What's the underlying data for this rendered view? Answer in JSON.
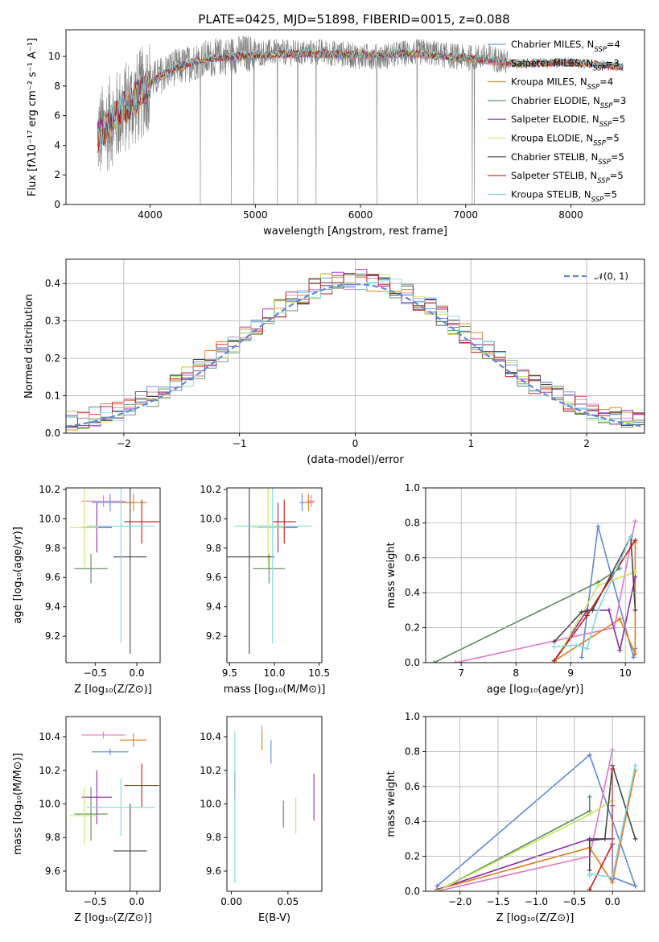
{
  "figure": {
    "title": "PLATE=0425, MJD=51898, FIBERID=0015, z=0.088"
  },
  "colors": {
    "chabrier_miles": "#5e87d8",
    "salpeter_miles": "#e377c2",
    "kroupa_miles": "#e07b1a",
    "chabrier_elodie": "#5a8a5e",
    "salpeter_elodie": "#8a2aa8",
    "kroupa_elodie": "#c8e85a",
    "chabrier_stelib": "#444444",
    "salpeter_stelib": "#c81818",
    "kroupa_stelib": "#7fd8e0",
    "data": "#808080",
    "normal": "#5e87d8",
    "grid": "#b0b0b0"
  },
  "chart_data": [
    {
      "id": "spectrum",
      "type": "line",
      "title": "PLATE=0425, MJD=51898, FIBERID=0015, z=0.088",
      "xlabel": "wavelength [Angstrom, rest frame]",
      "ylabel": "Flux [fλ10⁻¹⁷ erg cm⁻² s⁻¹ A⁻¹]",
      "xlim": [
        3200,
        8700
      ],
      "ylim": [
        0,
        11.8
      ],
      "xticks": [
        4000,
        5000,
        6000,
        7000,
        8000
      ],
      "yticks": [
        0,
        2,
        4,
        6,
        8,
        10
      ],
      "grid": false,
      "legend_position": "top-right",
      "data_envelope": {
        "x": [
          3500,
          3550,
          3600,
          3650,
          3700,
          3750,
          3800,
          3850,
          3900,
          3950,
          4000,
          4100,
          4200,
          4300,
          4400,
          4500,
          4600,
          4700,
          4800,
          4900,
          5000,
          5200,
          5400,
          5600,
          5800,
          6000,
          6200,
          6400,
          6600,
          6800,
          7000,
          7200,
          7400
        ],
        "y": [
          4.6,
          5.0,
          5.4,
          5.8,
          6.0,
          6.4,
          6.8,
          7.0,
          7.3,
          7.8,
          8.3,
          8.7,
          9.2,
          9.3,
          9.6,
          9.8,
          9.9,
          10.0,
          10.1,
          10.2,
          10.2,
          10.3,
          10.2,
          10.3,
          10.2,
          10.0,
          10.0,
          10.2,
          10.3,
          10.1,
          9.9,
          10.0,
          9.6
        ]
      },
      "model_envelope": {
        "x": [
          3500,
          3600,
          3700,
          3800,
          3900,
          4000,
          4200,
          4400,
          4600,
          4800,
          5000,
          5500,
          6000,
          6500,
          7000,
          7500,
          8000,
          8500
        ],
        "y": [
          4.5,
          5.4,
          6.2,
          6.8,
          7.4,
          8.2,
          9.1,
          9.6,
          9.9,
          10.0,
          10.1,
          10.2,
          10.1,
          10.2,
          9.9,
          9.5,
          9.6,
          9.3
        ]
      },
      "series": [
        {
          "name": "Chabrier MILES, N",
          "sub": "SSP",
          "suffix": "=4"
        },
        {
          "name": "Salpeter MILES, N",
          "sub": "SSP",
          "suffix": "=3"
        },
        {
          "name": "Kroupa MILES, N",
          "sub": "SSP",
          "suffix": "=4"
        },
        {
          "name": "Chabrier ELODIE, N",
          "sub": "SSP",
          "suffix": "=3"
        },
        {
          "name": "Salpeter ELODIE, N",
          "sub": "SSP",
          "suffix": "=5"
        },
        {
          "name": "Kroupa ELODIE, N",
          "sub": "SSP",
          "suffix": "=5"
        },
        {
          "name": "Chabrier STELIB, N",
          "sub": "SSP",
          "suffix": "=5"
        },
        {
          "name": "Salpeter STELIB, N",
          "sub": "SSP",
          "suffix": "=5"
        },
        {
          "name": "Kroupa STELIB, N",
          "sub": "SSP",
          "suffix": "=5"
        }
      ]
    },
    {
      "id": "residuals",
      "type": "line",
      "xlabel": "(data-model)/error",
      "ylabel": "Normed distribution",
      "xlim": [
        -2.5,
        2.5
      ],
      "ylim": [
        0,
        0.465
      ],
      "xticks": [
        -2,
        -1,
        0,
        1,
        2
      ],
      "yticks": [
        0.0,
        0.1,
        0.2,
        0.3,
        0.4
      ],
      "grid": true,
      "legend_position": "top-right",
      "legend_label": "𝒩(0, 1)",
      "normal": {
        "mean": 0,
        "sigma": 1
      },
      "bins": {
        "start": -2.5,
        "width": 0.1,
        "count": 50
      }
    },
    {
      "id": "age_vs_z",
      "type": "scatter",
      "xlabel": "Z [log₁₀(Z/Z⊙)]",
      "ylabel": "age  [log₁₀(age/yr)]",
      "xlim": [
        -0.85,
        0.28
      ],
      "ylim": [
        9.02,
        10.21
      ],
      "xticks": [
        -0.5,
        0.0
      ],
      "yticks": [
        9.2,
        9.4,
        9.6,
        9.8,
        10.0,
        10.2
      ],
      "grid": false
    },
    {
      "id": "age_vs_mass",
      "type": "scatter",
      "xlabel": "mass [log₁₀(M/M⊙)]",
      "ylabel": "",
      "xlim": [
        9.47,
        10.53
      ],
      "ylim": [
        9.02,
        10.21
      ],
      "xticks": [
        9.5,
        10.0,
        10.5
      ],
      "yticks": [
        9.2,
        9.4,
        9.6,
        9.8,
        10.0,
        10.2
      ],
      "grid": false
    },
    {
      "id": "weight_vs_age",
      "type": "line",
      "xlabel": "age  [log₁₀(age/yr)]",
      "ylabel": "mass weight",
      "xlim": [
        6.35,
        10.35
      ],
      "ylim": [
        0,
        1.0
      ],
      "xticks": [
        7,
        8,
        9,
        10
      ],
      "yticks": [
        0.0,
        0.2,
        0.4,
        0.6,
        0.8,
        1.0
      ],
      "grid": true
    },
    {
      "id": "mass_vs_z",
      "type": "scatter",
      "xlabel": "Z [log₁₀(Z/Z⊙)]",
      "ylabel": "mass [log₁₀(M/M⊙)]",
      "xlim": [
        -0.85,
        0.28
      ],
      "ylim": [
        9.48,
        10.52
      ],
      "xticks": [
        -0.5,
        0.0
      ],
      "yticks": [
        9.6,
        9.8,
        10.0,
        10.2,
        10.4
      ],
      "grid": false
    },
    {
      "id": "mass_vs_ebv",
      "type": "scatter",
      "xlabel": "E(B-V)",
      "ylabel": "",
      "xlim": [
        -0.004,
        0.08
      ],
      "ylim": [
        9.48,
        10.52
      ],
      "xticks": [
        0.0,
        0.05
      ],
      "yticks": [
        9.6,
        9.8,
        10.0,
        10.2,
        10.4
      ],
      "grid": false
    },
    {
      "id": "weight_vs_z",
      "type": "line",
      "xlabel": "Z [log₁₀(Z/Z⊙)]",
      "ylabel": "mass weight",
      "xlim": [
        -2.45,
        0.42
      ],
      "ylim": [
        0,
        1.0
      ],
      "xticks": [
        -2.0,
        -1.5,
        -1.0,
        -0.5,
        0.0
      ],
      "yticks": [
        0.0,
        0.2,
        0.4,
        0.6,
        0.8,
        1.0
      ],
      "grid": true
    }
  ],
  "fits": [
    {
      "model": "chabrier_miles",
      "z": -0.32,
      "zerr": 0.22,
      "age": 10.11,
      "ageerr": 0.06,
      "mass": 10.31,
      "masserr": 0.03,
      "masserr_z": 0.02,
      "ebv": 0.035,
      "ebverr": 0.07,
      "comp_age": [
        9.2,
        9.5,
        10.15,
        10.18
      ],
      "comp_z": [
        -2.3,
        -0.3,
        0.3,
        0.0
      ],
      "comp_w": [
        0.03,
        0.78,
        0.03,
        0.08
      ]
    },
    {
      "model": "salpeter_miles",
      "z": -0.4,
      "zerr": 0.26,
      "age": 10.12,
      "ageerr": 0.04,
      "mass": 10.41,
      "masserr": 0.05,
      "masserr_z": 0.02,
      "ebv": 0.027,
      "ebverr": 0.06,
      "comp_age": [
        6.9,
        9.8,
        10.18
      ],
      "comp_z": [
        -2.3,
        -0.3,
        0.0
      ],
      "comp_w": [
        0.0,
        0.2,
        0.81
      ]
    },
    {
      "model": "kroupa_miles",
      "z": -0.04,
      "zerr": 0.16,
      "age": 10.11,
      "ageerr": 0.06,
      "mass": 10.38,
      "masserr": 0.06,
      "masserr_z": 0.04,
      "ebv": 0.027,
      "ebverr": 0.06,
      "comp_age": [
        8.7,
        9.9,
        10.18,
        10.18
      ],
      "comp_z": [
        -2.3,
        -0.3,
        0.0,
        0.3
      ],
      "comp_w": [
        0.01,
        0.25,
        0.05,
        0.69
      ]
    },
    {
      "model": "chabrier_elodie",
      "z": -0.55,
      "zerr": 0.2,
      "age": 9.66,
      "ageerr": 0.1,
      "mass": 9.94,
      "masserr": 0.18,
      "masserr_z": 0.16,
      "ebv": 0.046,
      "ebverr": 0.08,
      "comp_age": [
        6.5,
        9.5,
        9.9
      ],
      "comp_z": [
        -2.3,
        -0.3,
        -0.3
      ],
      "comp_w": [
        0.0,
        0.46,
        0.54
      ]
    },
    {
      "model": "salpeter_elodie",
      "z": -0.48,
      "zerr": 0.18,
      "age": 9.94,
      "ageerr": 0.17,
      "mass": 10.04,
      "masserr": 0.22,
      "masserr_z": 0.16,
      "ebv": 0.073,
      "ebverr": 0.14,
      "comp_age": [
        8.7,
        9.3,
        9.7,
        9.9,
        10.18
      ],
      "comp_z": [
        -2.3,
        -0.3,
        0.0,
        0.0,
        0.0
      ],
      "comp_w": [
        0.01,
        0.3,
        0.3,
        0.07,
        0.49
      ]
    },
    {
      "model": "kroupa_elodie",
      "z": -0.63,
      "zerr": 0.17,
      "age": 9.94,
      "ageerr": 0.27,
      "mass": 9.93,
      "masserr": 0.18,
      "masserr_z": 0.17,
      "ebv": 0.057,
      "ebverr": 0.11,
      "comp_age": [
        8.7,
        9.5,
        10.18
      ],
      "comp_z": [
        -2.3,
        -0.3,
        0.0
      ],
      "comp_w": [
        0.0,
        0.44,
        0.52
      ]
    },
    {
      "model": "chabrier_stelib",
      "z": -0.08,
      "zerr": 0.2,
      "age": 9.74,
      "ageerr": 0.66,
      "mass": 9.72,
      "masserr": 0.28,
      "masserr_z": 0.28,
      "ebv": 0.058,
      "ebverr": 0.0,
      "comp_age": [
        8.7,
        9.2,
        9.4,
        10.1,
        10.18
      ],
      "comp_z": [
        -0.3,
        -0.3,
        -0.1,
        0.0,
        0.3
      ],
      "comp_w": [
        0.12,
        0.29,
        0.3,
        0.72,
        0.3
      ]
    },
    {
      "model": "salpeter_stelib",
      "z": 0.06,
      "zerr": 0.21,
      "age": 9.98,
      "ageerr": 0.15,
      "mass": 10.11,
      "masserr": 0.13,
      "masserr_z": 0.13,
      "ebv": 0.003,
      "ebverr": 0.08,
      "comp_age": [
        8.7,
        9.3,
        10.18
      ],
      "comp_z": [
        -0.3,
        0.0,
        0.0
      ],
      "comp_w": [
        0.01,
        0.27,
        0.7
      ]
    },
    {
      "model": "kroupa_stelib",
      "z": -0.19,
      "zerr": 0.41,
      "age": 9.95,
      "ageerr": 0.8,
      "mass": 9.98,
      "masserr": 0.43,
      "masserr_z": 0.17,
      "ebv": 0.003,
      "ebverr": 0.45,
      "comp_age": [
        8.7,
        9.1,
        9.3,
        9.5,
        10.1
      ],
      "comp_z": [
        -0.3,
        -0.3,
        0.0,
        0.1,
        0.3
      ],
      "comp_w": [
        0.09,
        0.1,
        0.08,
        0.3,
        0.72
      ]
    }
  ]
}
